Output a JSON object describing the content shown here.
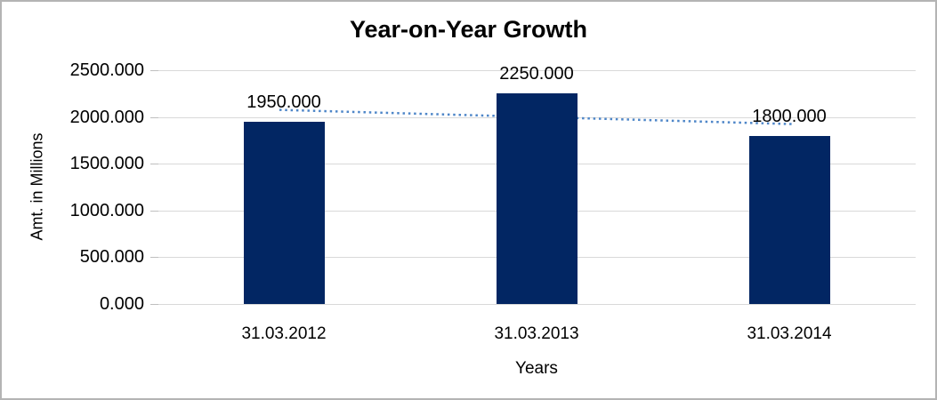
{
  "chart_data": {
    "type": "bar",
    "title": "Year-on-Year Growth",
    "xlabel": "Years",
    "ylabel": "Amt. in Millions",
    "categories": [
      "31.03.2012",
      "31.03.2013",
      "31.03.2014"
    ],
    "values": [
      1950,
      2250,
      1800
    ],
    "value_labels": [
      "1950.000",
      "2250.000",
      "1800.000"
    ],
    "ylim": [
      0,
      2500
    ],
    "ytick_step": 500,
    "ytick_labels": [
      "0.000",
      "500.000",
      "1000.000",
      "1500.000",
      "2000.000",
      "2500.000"
    ],
    "grid": true,
    "legend": "none",
    "colors": {
      "bar": "#022663",
      "trendline": "#4E86C8",
      "gridline": "#d9d9d9",
      "tick": "#bfbfbf",
      "text": "#000000",
      "frame_border": "#b4b4b4"
    },
    "trendline": {
      "style": "dotted",
      "fit": "linear"
    }
  }
}
